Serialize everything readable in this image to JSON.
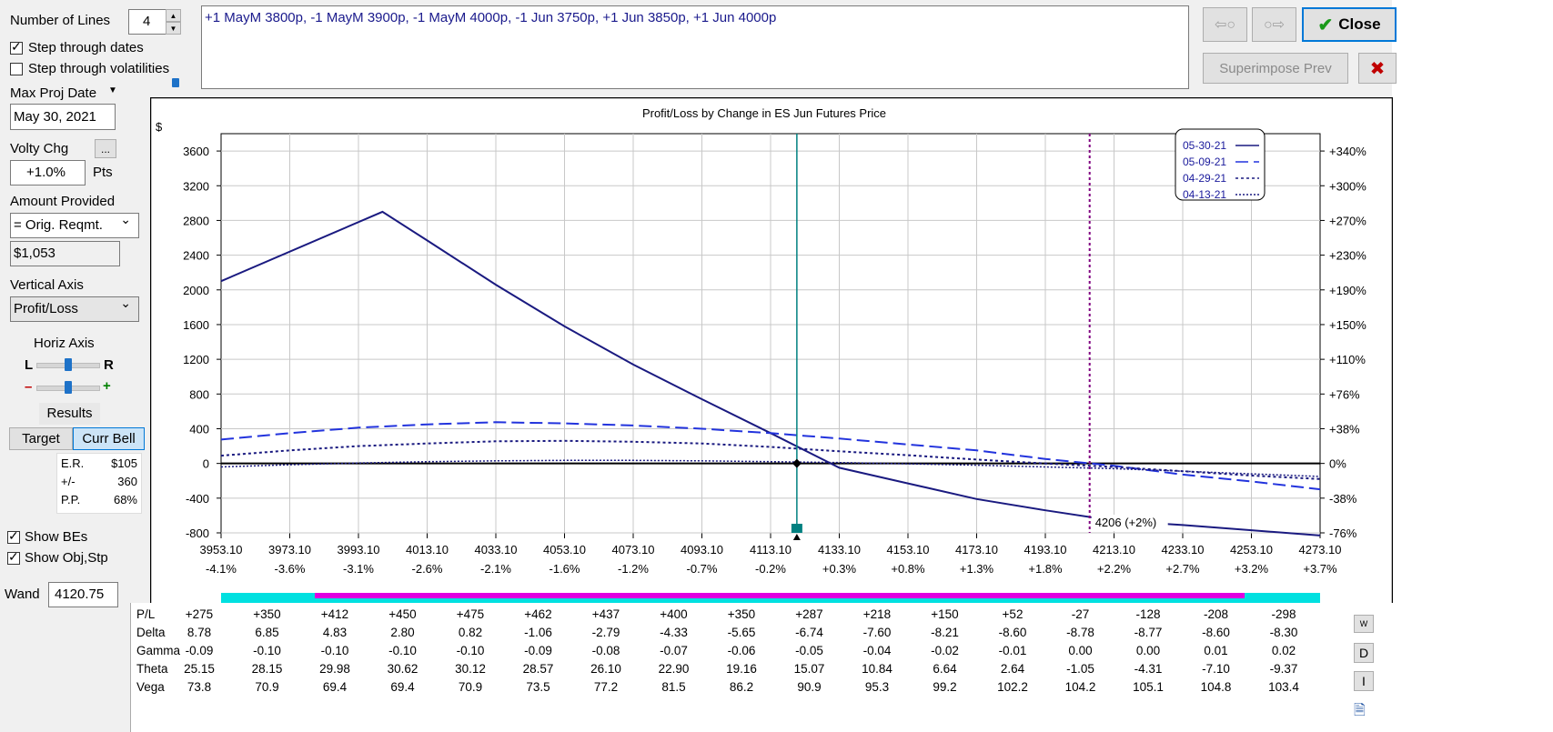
{
  "controls": {
    "num_lines_label": "Number of Lines",
    "num_lines_value": "4",
    "step_dates_label": "Step through dates",
    "step_vol_label": "Step through volatilities",
    "max_proj_label": "Max Proj Date",
    "max_proj_value": "May 30, 2021",
    "volty_label": "Volty Chg",
    "volty_value": "+1.0%",
    "volty_unit": "Pts",
    "ellipsis": "...",
    "amount_label": "Amount Provided",
    "amount_select": "= Orig. Reqmt.",
    "amount_value": "$1,053",
    "vaxis_label": "Vertical Axis",
    "vaxis_select": "Profit/Loss",
    "haxis_label": "Horiz Axis",
    "haxis_l": "L",
    "haxis_r": "R",
    "haxis_minus": "–",
    "haxis_plus": "+",
    "results_label": "Results",
    "target_btn": "Target",
    "currbell_btn": "Curr Bell",
    "er_label": "E.R.",
    "er_value": "$105",
    "pm_label": "+/-",
    "pm_value": "360",
    "pp_label": "P.P.",
    "pp_value": "68%",
    "show_bes": "Show BEs",
    "show_obj": "Show Obj,Stp",
    "wand_label": "Wand",
    "wand_value": "4120.75"
  },
  "positions_text": "+1 MayM 3800p, -1 MayM 3900p, -1 MayM 4000p, -1 Jun 3750p, +1 Jun 3850p, +1 Jun 4000p",
  "buttons": {
    "close": "Close",
    "superimpose": "Superimpose Prev",
    "prev_arrow": "⇦○",
    "next_arrow": "○⇨",
    "cancel": "✖"
  },
  "chart_data": {
    "type": "line",
    "title": "Profit/Loss by Change in ES Jun Futures Price",
    "y_unit": "$",
    "ylim": [
      -800,
      3800
    ],
    "xlim": [
      3953.1,
      4273.1
    ],
    "x_ticks": [
      "3953.10",
      "3973.10",
      "3993.10",
      "4013.10",
      "4033.10",
      "4053.10",
      "4073.10",
      "4093.10",
      "4113.10",
      "4133.10",
      "4153.10",
      "4173.10",
      "4193.10",
      "4213.10",
      "4233.10",
      "4253.10",
      "4273.10"
    ],
    "x_pct_ticks": [
      "-4.1%",
      "-3.6%",
      "-3.1%",
      "-2.6%",
      "-2.1%",
      "-1.6%",
      "-1.2%",
      "-0.7%",
      "-0.2%",
      "+0.3%",
      "+0.8%",
      "+1.3%",
      "+1.8%",
      "+2.2%",
      "+2.7%",
      "+3.2%",
      "+3.7%"
    ],
    "y_ticks": [
      3600,
      3200,
      2800,
      2400,
      2000,
      1600,
      1200,
      800,
      400,
      0,
      -400,
      -800
    ],
    "y_right_ticks": [
      "+340%",
      "+300%",
      "+270%",
      "+230%",
      "+190%",
      "+150%",
      "+110%",
      "+76%",
      "+38%",
      "0%",
      "-38%",
      "-76%"
    ],
    "current_price": 4120.75,
    "target_price": 4206,
    "target_label": "4206 (+2%)",
    "legend": [
      "05-30-21",
      "05-09-21",
      "04-29-21",
      "04-13-21"
    ],
    "series": [
      {
        "name": "05-30-21",
        "style": "solid",
        "x": [
          3953.1,
          4000.1,
          4013.1,
          4033.1,
          4053.1,
          4073.1,
          4093.1,
          4113.1,
          4133.1,
          4153.1,
          4173.1,
          4193.1,
          4213.1,
          4233.1,
          4253.1,
          4273.1
        ],
        "y": [
          2100,
          2900,
          2570,
          2060,
          1580,
          1140,
          740,
          350,
          -50,
          -230,
          -410,
          -540,
          -660,
          -710,
          -770,
          -830
        ]
      },
      {
        "name": "05-09-21",
        "style": "longdash",
        "x": [
          3953.1,
          3973.1,
          3993.1,
          4013.1,
          4033.1,
          4053.1,
          4073.1,
          4093.1,
          4113.1,
          4133.1,
          4153.1,
          4173.1,
          4193.1,
          4213.1,
          4233.1,
          4253.1,
          4273.1
        ],
        "y": [
          275,
          350,
          412,
          450,
          475,
          462,
          437,
          400,
          350,
          287,
          218,
          150,
          52,
          -27,
          -128,
          -208,
          -298
        ]
      },
      {
        "name": "04-29-21",
        "style": "dotted",
        "x": [
          3953.1,
          3973.1,
          3993.1,
          4013.1,
          4033.1,
          4053.1,
          4073.1,
          4093.1,
          4113.1,
          4133.1,
          4153.1,
          4173.1,
          4193.1,
          4213.1,
          4233.1,
          4253.1,
          4273.1
        ],
        "y": [
          90,
          150,
          200,
          230,
          255,
          260,
          250,
          230,
          190,
          140,
          95,
          45,
          0,
          -40,
          -90,
          -140,
          -180
        ]
      },
      {
        "name": "04-13-21",
        "style": "fine",
        "x": [
          3953.1,
          3973.1,
          3993.1,
          4013.1,
          4033.1,
          4053.1,
          4073.1,
          4093.1,
          4113.1,
          4133.1,
          4153.1,
          4173.1,
          4193.1,
          4213.1,
          4233.1,
          4253.1,
          4273.1
        ],
        "y": [
          -40,
          -15,
          5,
          20,
          30,
          35,
          35,
          30,
          20,
          10,
          -5,
          -20,
          -40,
          -60,
          -90,
          -120,
          -150
        ]
      }
    ]
  },
  "table": {
    "rows": [
      {
        "label": "P/L",
        "values": [
          "+275",
          "+350",
          "+412",
          "+450",
          "+475",
          "+462",
          "+437",
          "+400",
          "+350",
          "+287",
          "+218",
          "+150",
          "+52",
          "-27",
          "-128",
          "-208",
          "-298"
        ]
      },
      {
        "label": "Delta",
        "values": [
          "8.78",
          "6.85",
          "4.83",
          "2.80",
          "0.82",
          "-1.06",
          "-2.79",
          "-4.33",
          "-5.65",
          "-6.74",
          "-7.60",
          "-8.21",
          "-8.60",
          "-8.78",
          "-8.77",
          "-8.60",
          "-8.30"
        ]
      },
      {
        "label": "Gamma",
        "values": [
          "-0.09",
          "-0.10",
          "-0.10",
          "-0.10",
          "-0.10",
          "-0.09",
          "-0.08",
          "-0.07",
          "-0.06",
          "-0.05",
          "-0.04",
          "-0.02",
          "-0.01",
          "0.00",
          "0.00",
          "0.01",
          "0.02"
        ]
      },
      {
        "label": "Theta",
        "values": [
          "25.15",
          "28.15",
          "29.98",
          "30.62",
          "30.12",
          "28.57",
          "26.10",
          "22.90",
          "19.16",
          "15.07",
          "10.84",
          "6.64",
          "2.64",
          "-1.05",
          "-4.31",
          "-7.10",
          "-9.37"
        ]
      },
      {
        "label": "Vega",
        "values": [
          "73.8",
          "70.9",
          "69.4",
          "69.4",
          "70.9",
          "73.5",
          "77.2",
          "81.5",
          "86.2",
          "90.9",
          "95.3",
          "99.2",
          "102.2",
          "104.2",
          "105.1",
          "104.8",
          "103.4"
        ]
      }
    ],
    "side_buttons": [
      "W",
      "D",
      "I"
    ]
  }
}
